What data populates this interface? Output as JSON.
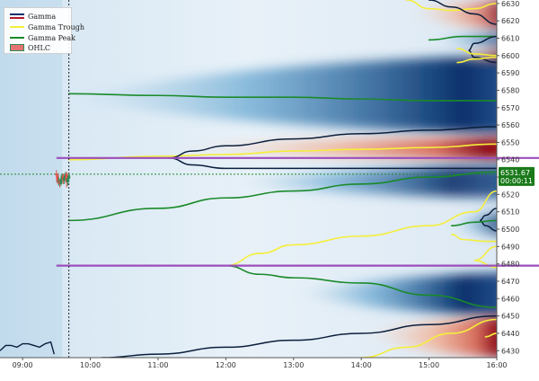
{
  "chart_data": {
    "type": "heatmap",
    "title": "",
    "xlabel": "",
    "ylabel": "",
    "x_ticks": [
      "09:00",
      "10:00",
      "11:00",
      "12:00",
      "13:00",
      "14:00",
      "15:00",
      "16:00"
    ],
    "x_range": [
      "08:40",
      "16:00"
    ],
    "y_ticks": [
      6430,
      6440,
      6450,
      6460,
      6470,
      6480,
      6490,
      6500,
      6510,
      6520,
      6530,
      6540,
      6550,
      6560,
      6570,
      6580,
      6590,
      6600,
      6610,
      6620,
      6630
    ],
    "y_range": [
      6426,
      6632
    ],
    "legend": {
      "position": "top-left",
      "items": [
        {
          "label": "Gamma",
          "kind": "gradient",
          "colors": [
            "#08306b",
            "#ffffff",
            "#b2182b"
          ]
        },
        {
          "label": "Gamma Trough",
          "kind": "line",
          "color": "#f5ee3b"
        },
        {
          "label": "Gamma Peak",
          "kind": "line",
          "color": "#1a8a2a"
        },
        {
          "label": "OHLC",
          "kind": "candle",
          "color": "#2e8b57"
        }
      ]
    },
    "colors": {
      "trough": "#f5ee3b",
      "peak": "#1a8a2a",
      "boundary": "#0a1e3c",
      "level": "#9b4dbb",
      "price": "#1a8a2a"
    },
    "current_price": {
      "value": "6531.67",
      "countdown": "00:00:11",
      "price_level": 6531.67
    },
    "current_time": "09:41",
    "key_levels": [
      {
        "y": 6541,
        "x_start": "09:30"
      },
      {
        "y": 6479,
        "x_start": "09:30"
      }
    ],
    "gamma_zones": [
      {
        "sign": "negative",
        "center": 6575,
        "top": 6600,
        "bottom": 6555,
        "start": "09:35",
        "peak_time": "15:30",
        "intensity": 1.0
      },
      {
        "sign": "positive",
        "center": 6547,
        "top": 6553,
        "bottom": 6540,
        "start": "11:00",
        "peak_time": "15:50",
        "intensity": 1.0
      },
      {
        "sign": "negative",
        "center": 6527,
        "top": 6537,
        "bottom": 6518,
        "start": "12:00",
        "peak_time": "15:20",
        "intensity": 0.9
      },
      {
        "sign": "negative",
        "center": 6463,
        "top": 6475,
        "bottom": 6450,
        "start": "13:00",
        "peak_time": "15:30",
        "intensity": 1.0
      },
      {
        "sign": "positive",
        "center": 6440,
        "top": 6450,
        "bottom": 6426,
        "start": "14:00",
        "peak_time": "16:00",
        "intensity": 1.0
      },
      {
        "sign": "positive",
        "center": 6625,
        "top": 6632,
        "bottom": 6615,
        "start": "14:40",
        "peak_time": "16:00",
        "intensity": 0.8
      },
      {
        "sign": "negative",
        "center": 6609,
        "top": 6613,
        "bottom": 6605,
        "start": "15:00",
        "peak_time": "16:00",
        "intensity": 0.7
      },
      {
        "sign": "positive",
        "center": 6600,
        "top": 6604,
        "bottom": 6596,
        "start": "15:20",
        "peak_time": "16:00",
        "intensity": 0.7
      },
      {
        "sign": "negative",
        "center": 6502,
        "top": 6510,
        "bottom": 6496,
        "start": "15:20",
        "peak_time": "16:00",
        "intensity": 0.7
      }
    ],
    "series": [
      {
        "name": "Gamma Peak",
        "style": "peak",
        "x": [
          "09:41",
          "11:00",
          "12:00",
          "13:00",
          "14:00",
          "15:00",
          "16:00"
        ],
        "y": [
          6578,
          6577,
          6576,
          6576,
          6575,
          6574,
          6574
        ]
      },
      {
        "name": "Gamma Peak",
        "style": "peak",
        "x": [
          "09:41",
          "11:00",
          "12:00",
          "13:00",
          "14:00",
          "15:00",
          "16:00"
        ],
        "y": [
          6505,
          6512,
          6518,
          6522,
          6526,
          6530,
          6533
        ]
      },
      {
        "name": "Gamma Peak",
        "style": "peak",
        "x": [
          "12:00",
          "12:30",
          "13:00",
          "14:00",
          "15:00",
          "16:00"
        ],
        "y": [
          6479,
          6474,
          6472,
          6469,
          6462,
          6455
        ]
      },
      {
        "name": "Gamma Trough",
        "style": "trough",
        "x": [
          "09:41",
          "11:00",
          "12:00",
          "13:00",
          "14:00",
          "15:00",
          "16:00"
        ],
        "y": [
          6540,
          6542,
          6543,
          6545,
          6546,
          6547,
          6549
        ]
      },
      {
        "name": "Gamma Trough",
        "style": "trough",
        "x": [
          "12:00",
          "12:30",
          "13:00",
          "14:00",
          "15:00",
          "15:40",
          "16:00"
        ],
        "y": [
          6479,
          6486,
          6491,
          6496,
          6502,
          6510,
          6522
        ]
      },
      {
        "name": "Gamma Trough",
        "style": "trough",
        "x": [
          "14:00",
          "14:40",
          "15:20",
          "16:00"
        ],
        "y": [
          6426,
          6432,
          6440,
          6448
        ]
      },
      {
        "name": "",
        "style": "boundary",
        "x": [
          "11:10",
          "11:30",
          "12:00",
          "13:00",
          "14:00",
          "15:00",
          "16:00"
        ],
        "y": [
          6541,
          6545,
          6548,
          6552,
          6555,
          6557,
          6559
        ]
      },
      {
        "name": "",
        "style": "boundary",
        "x": [
          "11:10",
          "11:30",
          "12:00",
          "13:00",
          "14:00",
          "15:00",
          "16:00"
        ],
        "y": [
          6541,
          6537,
          6535,
          6535,
          6535,
          6535,
          6535
        ]
      },
      {
        "name": "",
        "style": "boundary",
        "x": [
          "10:10",
          "11:00",
          "12:00",
          "13:00",
          "14:00",
          "15:00",
          "16:00"
        ],
        "y": [
          6426,
          6428,
          6432,
          6436,
          6440,
          6445,
          6450
        ]
      },
      {
        "name": "",
        "style": "trough",
        "x": [
          "14:40",
          "15:00",
          "15:20",
          "15:40",
          "16:00"
        ],
        "y": [
          6632,
          6627,
          6626,
          6627,
          6630
        ]
      },
      {
        "name": "",
        "style": "boundary",
        "x": [
          "15:00",
          "15:20",
          "15:40",
          "16:00"
        ],
        "y": [
          6632,
          6628,
          6624,
          6618
        ]
      },
      {
        "name": "",
        "style": "peak",
        "x": [
          "15:00",
          "15:30",
          "16:00"
        ],
        "y": [
          6609,
          6611,
          6611
        ]
      },
      {
        "name": "",
        "style": "boundary",
        "x": [
          "16:00",
          "15:40",
          "15:35",
          "15:40",
          "16:00"
        ],
        "y": [
          6611,
          6607,
          6603,
          6599,
          6596
        ]
      },
      {
        "name": "",
        "style": "trough",
        "x": [
          "15:25",
          "15:40",
          "16:00"
        ],
        "y": [
          6604,
          6601,
          6600
        ]
      },
      {
        "name": "",
        "style": "trough",
        "x": [
          "15:25",
          "15:40",
          "16:00"
        ],
        "y": [
          6596,
          6598,
          6599
        ]
      },
      {
        "name": "",
        "style": "boundary",
        "x": [
          "16:00",
          "15:50",
          "15:45",
          "15:50",
          "16:00"
        ],
        "y": [
          6512,
          6508,
          6505,
          6502,
          6499
        ]
      },
      {
        "name": "",
        "style": "peak",
        "x": [
          "15:20",
          "15:40",
          "16:00"
        ],
        "y": [
          6502,
          6504,
          6505
        ]
      },
      {
        "name": "",
        "style": "trough",
        "x": [
          "15:20",
          "15:30",
          "15:50",
          "16:00"
        ],
        "y": [
          6497,
          6494,
          6493,
          6493
        ]
      },
      {
        "name": "",
        "style": "trough",
        "x": [
          "16:00",
          "15:40",
          "16:00"
        ],
        "y": [
          6490,
          6482,
          6478
        ]
      },
      {
        "name": "",
        "style": "trough",
        "x": [
          "15:50",
          "16:00"
        ],
        "y": [
          6438,
          6440
        ]
      }
    ],
    "ohlc": {
      "times": [
        "09:30",
        "09:31",
        "09:32",
        "09:33",
        "09:34",
        "09:35",
        "09:36",
        "09:37",
        "09:38",
        "09:39",
        "09:40",
        "09:41"
      ],
      "open": [
        6532,
        6531,
        6527,
        6528,
        6526,
        6529,
        6531,
        6528,
        6530,
        6532,
        6527,
        6529
      ],
      "close": [
        6531,
        6527,
        6528,
        6526,
        6529,
        6531,
        6528,
        6530,
        6532,
        6527,
        6529,
        6531
      ],
      "high": [
        6534,
        6532,
        6530,
        6529,
        6530,
        6532,
        6532,
        6531,
        6533,
        6533,
        6530,
        6532
      ],
      "low": [
        6529,
        6526,
        6525,
        6524,
        6525,
        6527,
        6526,
        6526,
        6528,
        6524,
        6525,
        6527
      ]
    },
    "gex_profile": {
      "x": [
        "08:40",
        "08:45",
        "08:50",
        "08:55",
        "09:00",
        "09:05",
        "09:10",
        "09:15",
        "09:20",
        "09:25",
        "09:28"
      ],
      "y": [
        6430,
        6433,
        6433,
        6432,
        6434,
        6434,
        6433,
        6432,
        6434,
        6435,
        6428
      ]
    }
  }
}
